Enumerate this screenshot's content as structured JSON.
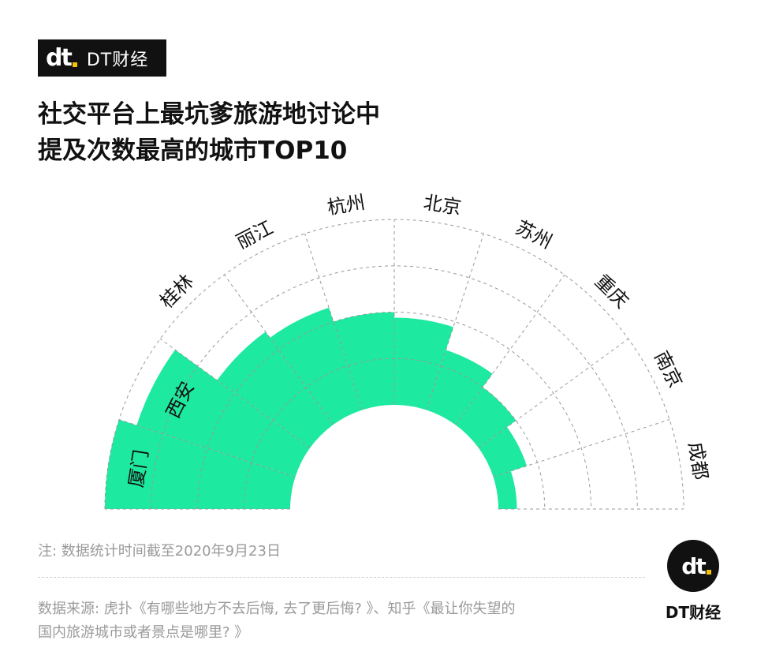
{
  "brand": {
    "mark": "dt",
    "name": "DT财经"
  },
  "title": {
    "line1": "社交平台上最坑爹旅游地讨论中",
    "line2": "提及次数最高的城市TOP10"
  },
  "note": "注: 数据统计时间截至2020年9月23日",
  "source": {
    "line1": "数据来源: 虎扑《有哪些地方不去后悔, 去了更后悔? 》、知乎《最让你失望的",
    "line2": "国内旅游城市或者景点是哪里? 》"
  },
  "colors": {
    "bar": "#1de9a0",
    "grid": "#9a9a9a",
    "text": "#111111"
  },
  "chart_data": {
    "type": "bar",
    "layout": "radial-semicircle",
    "title": "社交平台上最坑爹旅游地讨论中提及次数最高的城市TOP10",
    "categories": [
      "厦门",
      "西安",
      "桂林",
      "丽江",
      "杭州",
      "北京",
      "苏州",
      "重庆",
      "南京",
      "成都"
    ],
    "values": [
      10,
      9,
      6.2,
      5.8,
      5,
      4.7,
      3.4,
      2.5,
      1.9,
      1
    ],
    "ylim": [
      0,
      10
    ],
    "grid": true,
    "legend": "none"
  }
}
